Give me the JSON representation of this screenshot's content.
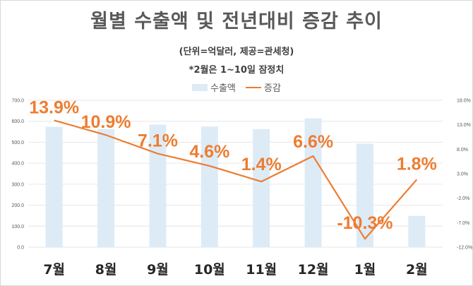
{
  "chart_data": {
    "type": "bar+line",
    "title": "월별 수출액 및 전년대비 증감 추이",
    "subtitle_1": "(단위=억달러, 제공=관세청)",
    "subtitle_2": "*2월은 1~10일 잠정치",
    "categories": [
      "7월",
      "8월",
      "9월",
      "10월",
      "11월",
      "12월",
      "1월",
      "2월"
    ],
    "series": [
      {
        "name": "수출액",
        "type": "bar",
        "axis": "left",
        "color": "#ddebf7",
        "values": [
          574,
          563,
          584,
          575,
          563,
          614,
          493,
          149
        ]
      },
      {
        "name": "증감",
        "type": "line",
        "axis": "right",
        "color": "#ed7d31",
        "values": [
          13.9,
          10.9,
          7.1,
          4.6,
          1.4,
          6.6,
          -10.3,
          1.8
        ],
        "labels": [
          "13.9%",
          "10.9%",
          "7.1%",
          "4.6%",
          "1.4%",
          "6.6%",
          "-10.3%",
          "1.8%"
        ]
      }
    ],
    "y_left": {
      "range": [
        0,
        700
      ],
      "ticks": [
        "0.0",
        "100.0",
        "200.0",
        "300.0",
        "400.0",
        "500.0",
        "600.0",
        "700.0"
      ]
    },
    "y_right": {
      "range": [
        -12,
        18
      ],
      "ticks": [
        "-12.0%",
        "-7.0%",
        "-2.0%",
        "3.0%",
        "8.0%",
        "13.0%",
        "18.0%"
      ]
    },
    "gridlines": true,
    "legend_position": "top"
  }
}
